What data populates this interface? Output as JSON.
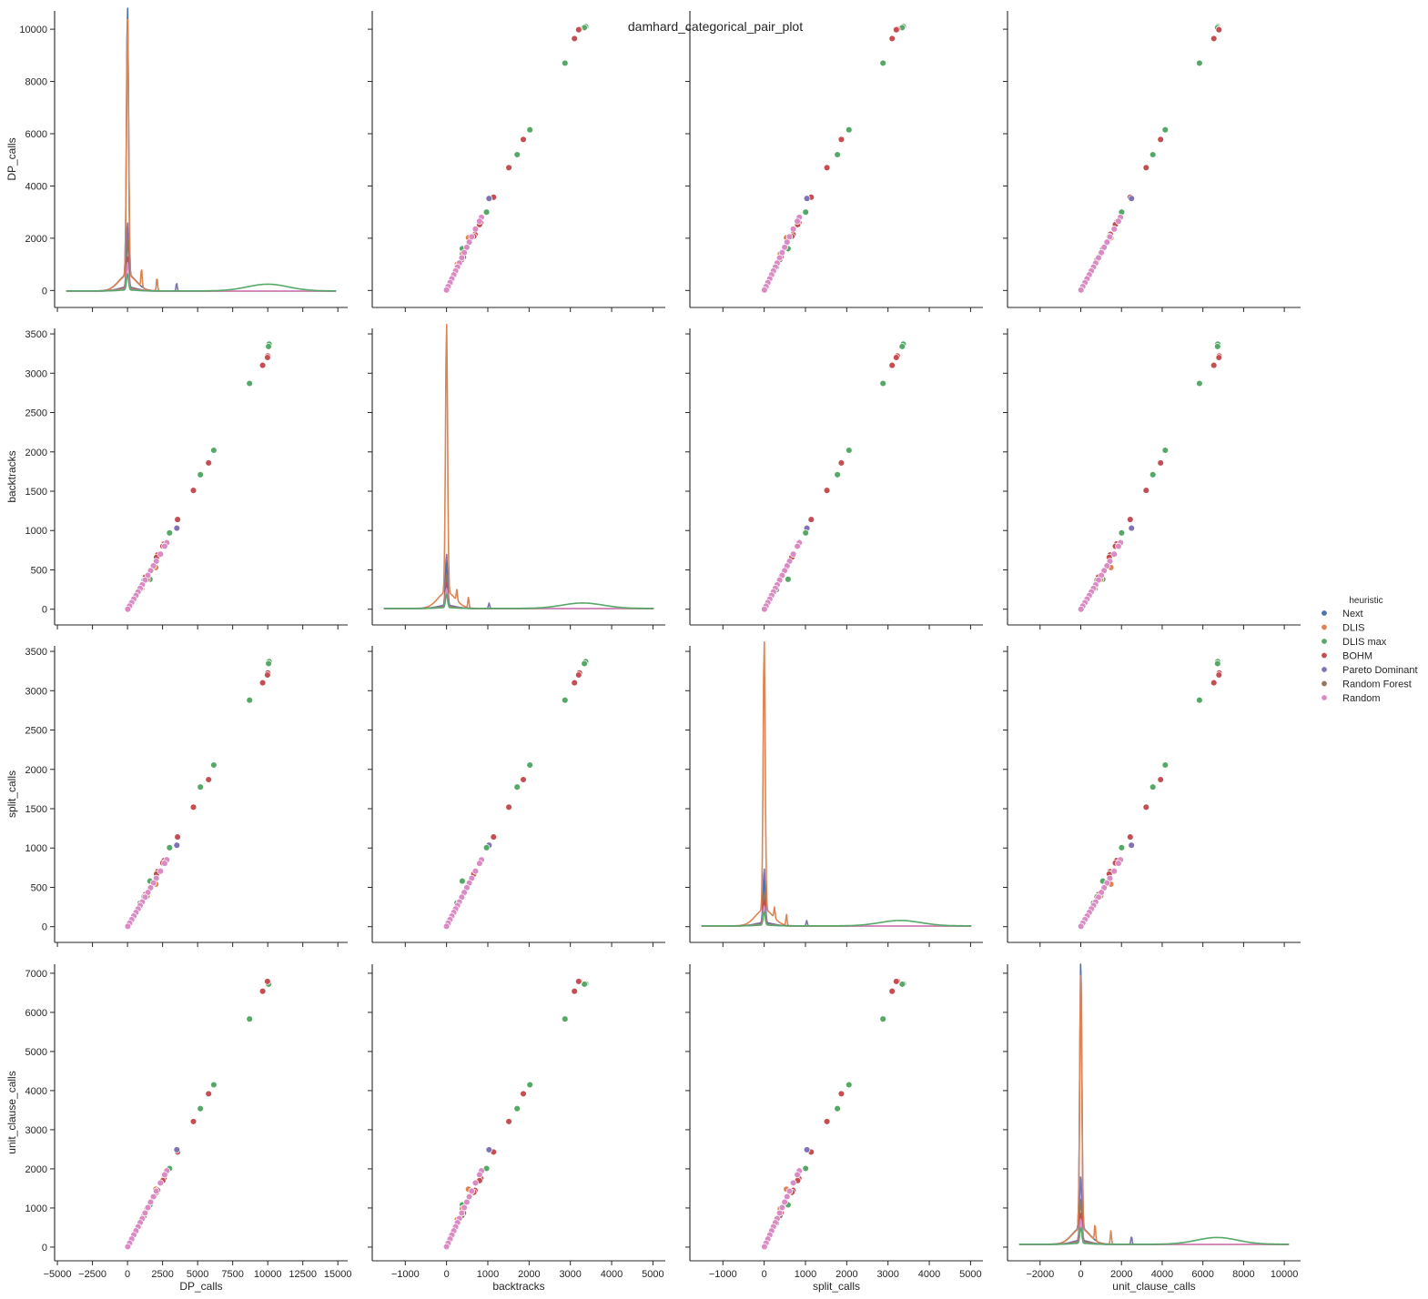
{
  "chart_data": {
    "type": "scatter",
    "title": "damhard_categorical_pair_plot",
    "variables": [
      "DP_calls",
      "backtracks",
      "split_calls",
      "unit_clause_calls"
    ],
    "axes": {
      "DP_calls": {
        "label": "DP_calls",
        "x_range": [
          -5200,
          15700
        ],
        "x_ticks": [
          -5000,
          -2500,
          0,
          2500,
          5000,
          7500,
          10000,
          12500,
          15000
        ],
        "y_range": [
          -650,
          10700
        ],
        "y_ticks": [
          0,
          2000,
          4000,
          6000,
          8000,
          10000
        ]
      },
      "backtracks": {
        "label": "backtracks",
        "x_range": [
          -1800,
          5300
        ],
        "x_ticks": [
          -1000,
          0,
          1000,
          2000,
          3000,
          4000,
          5000
        ],
        "y_range": [
          -200,
          3570
        ],
        "y_ticks": [
          0,
          500,
          1000,
          1500,
          2000,
          2500,
          3000,
          3500
        ]
      },
      "split_calls": {
        "label": "split_calls",
        "x_range": [
          -1800,
          5300
        ],
        "x_ticks": [
          -1000,
          0,
          1000,
          2000,
          3000,
          4000,
          5000
        ],
        "y_range": [
          -200,
          3570
        ],
        "y_ticks": [
          0,
          500,
          1000,
          1500,
          2000,
          2500,
          3000,
          3500
        ]
      },
      "unit_clause_calls": {
        "label": "unit_clause_calls",
        "x_range": [
          -3600,
          10800
        ],
        "x_ticks": [
          -2000,
          0,
          2000,
          4000,
          6000,
          8000,
          10000
        ],
        "y_range": [
          -350,
          7230
        ],
        "y_ticks": [
          0,
          1000,
          2000,
          3000,
          4000,
          5000,
          6000,
          7000
        ]
      }
    },
    "legend": {
      "title": "heuristic",
      "placement": "right",
      "entries": [
        {
          "name": "Next",
          "color": "#4c72b0"
        },
        {
          "name": "DLIS",
          "color": "#dd8452"
        },
        {
          "name": "DLIS max",
          "color": "#55a868"
        },
        {
          "name": "BOHM",
          "color": "#c44e52"
        },
        {
          "name": "Pareto Dominant",
          "color": "#8172b3"
        },
        {
          "name": "Random Forest",
          "color": "#937860"
        },
        {
          "name": "Random",
          "color": "#da8bc3"
        }
      ]
    },
    "points": [
      {
        "heuristic": "DLIS max",
        "DP_calls": 10100,
        "backtracks": 3370,
        "split_calls": 3370,
        "unit_clause_calls": 6730
      },
      {
        "heuristic": "DLIS max",
        "DP_calls": 10060,
        "backtracks": 3340,
        "split_calls": 3345,
        "unit_clause_calls": 6720
      },
      {
        "heuristic": "BOHM",
        "DP_calls": 10000,
        "backtracks": 3220,
        "split_calls": 3225,
        "unit_clause_calls": 6800
      },
      {
        "heuristic": "BOHM",
        "DP_calls": 9980,
        "backtracks": 3200,
        "split_calls": 3200,
        "unit_clause_calls": 6790
      },
      {
        "heuristic": "BOHM",
        "DP_calls": 9640,
        "backtracks": 3100,
        "split_calls": 3100,
        "unit_clause_calls": 6540
      },
      {
        "heuristic": "DLIS max",
        "DP_calls": 8700,
        "backtracks": 2870,
        "split_calls": 2880,
        "unit_clause_calls": 5830
      },
      {
        "heuristic": "DLIS max",
        "DP_calls": 6150,
        "backtracks": 2020,
        "split_calls": 2055,
        "unit_clause_calls": 4150
      },
      {
        "heuristic": "BOHM",
        "DP_calls": 5780,
        "backtracks": 1860,
        "split_calls": 1870,
        "unit_clause_calls": 3920
      },
      {
        "heuristic": "DLIS max",
        "DP_calls": 5200,
        "backtracks": 1710,
        "split_calls": 1775,
        "unit_clause_calls": 3540
      },
      {
        "heuristic": "BOHM",
        "DP_calls": 4700,
        "backtracks": 1510,
        "split_calls": 1520,
        "unit_clause_calls": 3210
      },
      {
        "heuristic": "BOHM",
        "DP_calls": 3570,
        "backtracks": 1140,
        "split_calls": 1140,
        "unit_clause_calls": 2430
      },
      {
        "heuristic": "Pareto Dominant",
        "DP_calls": 3520,
        "backtracks": 1030,
        "split_calls": 1035,
        "unit_clause_calls": 2490
      },
      {
        "heuristic": "DLIS max",
        "DP_calls": 3000,
        "backtracks": 970,
        "split_calls": 1005,
        "unit_clause_calls": 2010
      },
      {
        "heuristic": "BOHM",
        "DP_calls": 2600,
        "backtracks": 830,
        "split_calls": 840,
        "unit_clause_calls": 1760
      },
      {
        "heuristic": "BOHM",
        "DP_calls": 2520,
        "backtracks": 800,
        "split_calls": 810,
        "unit_clause_calls": 1700
      },
      {
        "heuristic": "DLIS",
        "DP_calls": 2020,
        "backtracks": 530,
        "split_calls": 540,
        "unit_clause_calls": 1480
      },
      {
        "heuristic": "BOHM",
        "DP_calls": 2150,
        "backtracks": 690,
        "split_calls": 700,
        "unit_clause_calls": 1450
      },
      {
        "heuristic": "BOHM",
        "DP_calls": 2070,
        "backtracks": 660,
        "split_calls": 670,
        "unit_clause_calls": 1400
      },
      {
        "heuristic": "DLIS max",
        "DP_calls": 1600,
        "backtracks": 380,
        "split_calls": 580,
        "unit_clause_calls": 1080
      },
      {
        "heuristic": "BOHM",
        "DP_calls": 1280,
        "backtracks": 410,
        "split_calls": 410,
        "unit_clause_calls": 870
      },
      {
        "heuristic": "DLIS",
        "DP_calls": 1000,
        "backtracks": 260,
        "split_calls": 300,
        "unit_clause_calls": 700
      },
      {
        "heuristic": "Random Forest",
        "DP_calls": 1180,
        "backtracks": 370,
        "split_calls": 380,
        "unit_clause_calls": 800
      },
      {
        "heuristic": "DLIS",
        "DP_calls": 1400,
        "backtracks": 380,
        "split_calls": 390,
        "unit_clause_calls": 980
      },
      {
        "heuristic": "DLIS max",
        "DP_calls": 900,
        "backtracks": 250,
        "split_calls": 300,
        "unit_clause_calls": 620
      },
      {
        "heuristic": "Random",
        "DP_calls": 2800,
        "backtracks": 845,
        "split_calls": 850,
        "unit_clause_calls": 1950
      },
      {
        "heuristic": "Random",
        "DP_calls": 2650,
        "backtracks": 800,
        "split_calls": 805,
        "unit_clause_calls": 1850
      },
      {
        "heuristic": "Random",
        "DP_calls": 2350,
        "backtracks": 700,
        "split_calls": 705,
        "unit_clause_calls": 1640
      },
      {
        "heuristic": "Random",
        "DP_calls": 2050,
        "backtracks": 610,
        "split_calls": 615,
        "unit_clause_calls": 1430
      },
      {
        "heuristic": "Random",
        "DP_calls": 1850,
        "backtracks": 550,
        "split_calls": 555,
        "unit_clause_calls": 1290
      },
      {
        "heuristic": "Random",
        "DP_calls": 1650,
        "backtracks": 490,
        "split_calls": 495,
        "unit_clause_calls": 1150
      },
      {
        "heuristic": "Random",
        "DP_calls": 1450,
        "backtracks": 430,
        "split_calls": 435,
        "unit_clause_calls": 1010
      },
      {
        "heuristic": "Random",
        "DP_calls": 1250,
        "backtracks": 370,
        "split_calls": 375,
        "unit_clause_calls": 870
      },
      {
        "heuristic": "Random",
        "DP_calls": 1050,
        "backtracks": 310,
        "split_calls": 315,
        "unit_clause_calls": 730
      },
      {
        "heuristic": "Random",
        "DP_calls": 900,
        "backtracks": 265,
        "split_calls": 270,
        "unit_clause_calls": 625
      },
      {
        "heuristic": "Random",
        "DP_calls": 750,
        "backtracks": 220,
        "split_calls": 225,
        "unit_clause_calls": 520
      },
      {
        "heuristic": "Random",
        "DP_calls": 600,
        "backtracks": 175,
        "split_calls": 180,
        "unit_clause_calls": 415
      },
      {
        "heuristic": "Random",
        "DP_calls": 450,
        "backtracks": 130,
        "split_calls": 135,
        "unit_clause_calls": 310
      },
      {
        "heuristic": "Random",
        "DP_calls": 300,
        "backtracks": 85,
        "split_calls": 90,
        "unit_clause_calls": 205
      },
      {
        "heuristic": "Random",
        "DP_calls": 150,
        "backtracks": 40,
        "split_calls": 45,
        "unit_clause_calls": 100
      },
      {
        "heuristic": "Random",
        "DP_calls": 20,
        "backtracks": 0,
        "split_calls": 5,
        "unit_clause_calls": 10
      }
    ],
    "kde": {
      "note_values_in_density_fraction_of_panel_height": true,
      "DP_calls": [
        {
          "heuristic": "Next",
          "peak_at": 0,
          "peak": 1.0,
          "spikes": []
        },
        {
          "heuristic": "DLIS",
          "peak_at": 0,
          "peak": 0.96,
          "spikes": [
            [
              1000,
              0.07
            ],
            [
              2100,
              0.05
            ]
          ]
        },
        {
          "heuristic": "Pareto Dominant",
          "peak_at": 0,
          "peak": 0.24,
          "spikes": [
            [
              3500,
              0.03
            ]
          ]
        },
        {
          "heuristic": "Random Forest",
          "peak_at": 0,
          "peak": 0.18,
          "spikes": []
        },
        {
          "heuristic": "BOHM",
          "peak_at": 0,
          "peak": 0.12,
          "spikes": []
        },
        {
          "heuristic": "Random",
          "peak_at": 0,
          "peak": 0.1,
          "spikes": []
        },
        {
          "heuristic": "DLIS max",
          "peak_at": 0,
          "peak": 0.06,
          "bump_at": 10000,
          "bump": 0.025
        }
      ],
      "backtracks": [
        {
          "heuristic": "DLIS",
          "peak_at": 0,
          "peak": 1.0,
          "spikes": [
            [
              250,
              0.04
            ],
            [
              530,
              0.04
            ]
          ]
        },
        {
          "heuristic": "Pareto Dominant",
          "peak_at": 0,
          "peak": 0.19,
          "spikes": [
            [
              1030,
              0.02
            ]
          ]
        },
        {
          "heuristic": "Next",
          "peak_at": 0,
          "peak": 0.16,
          "spikes": []
        },
        {
          "heuristic": "Random Forest",
          "peak_at": 0,
          "peak": 0.12,
          "spikes": []
        },
        {
          "heuristic": "BOHM",
          "peak_at": 0,
          "peak": 0.09,
          "spikes": []
        },
        {
          "heuristic": "Random",
          "peak_at": 0,
          "peak": 0.07,
          "spikes": []
        },
        {
          "heuristic": "DLIS max",
          "peak_at": 0,
          "peak": 0.05,
          "bump_at": 3300,
          "bump": 0.02
        }
      ],
      "split_calls": [
        {
          "heuristic": "DLIS",
          "peak_at": 0,
          "peak": 1.0,
          "spikes": [
            [
              250,
              0.04
            ],
            [
              540,
              0.04
            ]
          ]
        },
        {
          "heuristic": "Pareto Dominant",
          "peak_at": 0,
          "peak": 0.2,
          "spikes": [
            [
              1030,
              0.02
            ]
          ]
        },
        {
          "heuristic": "Next",
          "peak_at": 0,
          "peak": 0.16,
          "spikes": []
        },
        {
          "heuristic": "Random Forest",
          "peak_at": 0,
          "peak": 0.12,
          "spikes": []
        },
        {
          "heuristic": "BOHM",
          "peak_at": 0,
          "peak": 0.09,
          "spikes": []
        },
        {
          "heuristic": "Random",
          "peak_at": 0,
          "peak": 0.07,
          "spikes": []
        },
        {
          "heuristic": "DLIS max",
          "peak_at": 0,
          "peak": 0.05,
          "bump_at": 3300,
          "bump": 0.02
        }
      ],
      "unit_clause_calls": [
        {
          "heuristic": "Next",
          "peak_at": 0,
          "peak": 1.0,
          "spikes": []
        },
        {
          "heuristic": "DLIS",
          "peak_at": 0,
          "peak": 0.96,
          "spikes": [
            [
              700,
              0.06
            ],
            [
              1480,
              0.05
            ]
          ]
        },
        {
          "heuristic": "Pareto Dominant",
          "peak_at": 0,
          "peak": 0.24,
          "spikes": [
            [
              2490,
              0.03
            ]
          ]
        },
        {
          "heuristic": "Random Forest",
          "peak_at": 0,
          "peak": 0.16,
          "spikes": []
        },
        {
          "heuristic": "BOHM",
          "peak_at": 0,
          "peak": 0.11,
          "spikes": []
        },
        {
          "heuristic": "Random",
          "peak_at": 0,
          "peak": 0.09,
          "spikes": []
        },
        {
          "heuristic": "DLIS max",
          "peak_at": 0,
          "peak": 0.06,
          "bump_at": 6700,
          "bump": 0.025
        }
      ]
    },
    "grid": false
  }
}
